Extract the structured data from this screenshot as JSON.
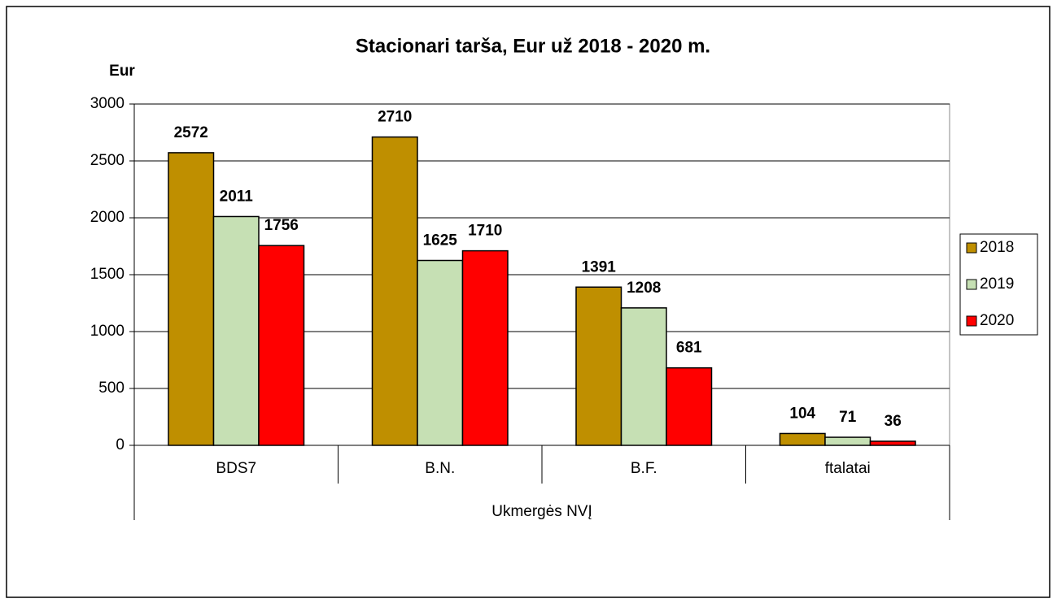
{
  "chart_data": {
    "type": "bar",
    "title": "Stacionari tarša, Eur už 2018 - 2020 m.",
    "y_label": "Eur",
    "group_label": "Ukmergės NVĮ",
    "categories": [
      "BDS7",
      "B.N.",
      "B.F.",
      "ftalatai"
    ],
    "series": [
      {
        "name": "2018",
        "color": "#bf8f00",
        "values": [
          2572,
          2710,
          1391,
          104
        ]
      },
      {
        "name": "2019",
        "color": "#c6e0b4",
        "values": [
          2011,
          1625,
          1208,
          71
        ]
      },
      {
        "name": "2020",
        "color": "#ff0000",
        "values": [
          1756,
          1710,
          681,
          36
        ]
      }
    ],
    "ylim": [
      0,
      3000
    ],
    "yticks": [
      0,
      500,
      1000,
      1500,
      2000,
      2500,
      3000
    ],
    "grid": true,
    "legend": "right"
  }
}
